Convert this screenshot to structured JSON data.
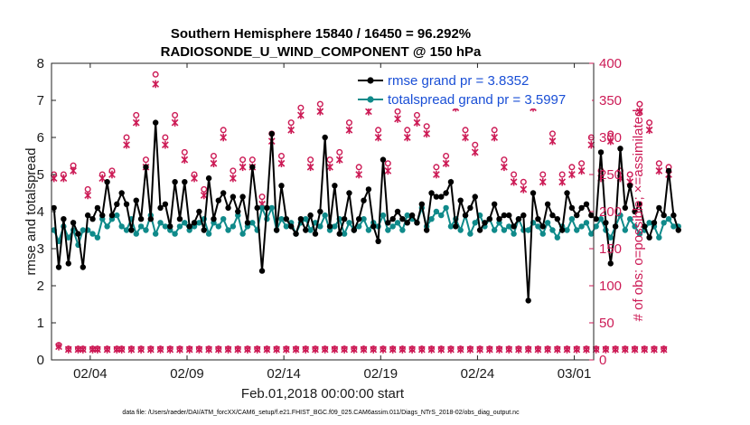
{
  "chart_data": {
    "type": "line",
    "title": "Southern Hemisphere 15840 / 16450 = 96.292%",
    "subtitle": "RADIOSONDE_U_WIND_COMPONENT @ 150 hPa",
    "xlabel": "Feb.01,2018 00:00:00 start",
    "ylabel": "rmse and totalspread",
    "ylabel_right": "# of obs: o=possible; ×=assimilated",
    "footnote": "data file: /Users/raeder/DAI/ATM_forcXX/CAM6_setup/f.e21.FHIST_BGC.f09_025.CAM6assim.011/Diags_NTrS_2018-02/obs_diag_output.nc",
    "xlim": [
      1,
      29
    ],
    "ylim": [
      0,
      8
    ],
    "ylim_right": [
      0,
      400
    ],
    "xticks": [
      3,
      8,
      13,
      18,
      23,
      28
    ],
    "xtick_labels": [
      "02/04",
      "02/09",
      "02/14",
      "02/19",
      "02/24",
      "03/01"
    ],
    "yticks": [
      0,
      1,
      2,
      3,
      4,
      5,
      6,
      7,
      8
    ],
    "yticks_right": [
      0,
      50,
      100,
      150,
      200,
      250,
      300,
      350,
      400
    ],
    "bin_width_days": 0.25,
    "legend_position": "top-right",
    "series": [
      {
        "name": "rmse grand pr = 3.8352",
        "color": "#000000",
        "axis": "left",
        "values": [
          4.1,
          2.5,
          3.8,
          2.6,
          3.7,
          3.4,
          2.5,
          3.9,
          3.8,
          4.1,
          3.9,
          4.8,
          3.9,
          4.2,
          4.5,
          4.2,
          3.5,
          4.3,
          3.8,
          5.2,
          3.8,
          6.4,
          4.1,
          4.2,
          3.6,
          4.8,
          3.8,
          4.8,
          3.6,
          3.7,
          4.0,
          3.5,
          4.9,
          3.8,
          4.3,
          4.5,
          4.1,
          4.4,
          4.0,
          4.4,
          3.7,
          5.2,
          4.1,
          2.4,
          4.1,
          6.1,
          3.5,
          4.7,
          3.8,
          3.6,
          3.4,
          3.8,
          3.5,
          3.9,
          3.4,
          4.0,
          6.0,
          3.6,
          4.7,
          3.4,
          3.8,
          4.5,
          3.5,
          3.8,
          4.3,
          4.6,
          3.6,
          3.2,
          5.4,
          3.7,
          3.8,
          4.0,
          3.8,
          3.7,
          3.9,
          3.7,
          4.2,
          3.5,
          4.5,
          4.4,
          4.4,
          4.5,
          4.8,
          3.6,
          4.3,
          3.9,
          4.1,
          4.4,
          3.5,
          3.7,
          3.8,
          4.2,
          3.8,
          3.9,
          3.9,
          3.6,
          3.8,
          3.9,
          1.6,
          4.5,
          3.8,
          3.6,
          4.2,
          3.9,
          3.8,
          3.5,
          4.5,
          4.1,
          3.9,
          4.1,
          4.2,
          3.9,
          3.8,
          5.6,
          3.7,
          2.6,
          3.6,
          5.7,
          4.1,
          4.7,
          4.0,
          4.2,
          3.6,
          3.3,
          3.7,
          4.1,
          3.9,
          5.1,
          3.9,
          3.5
        ]
      },
      {
        "name": "totalspread grand pr = 3.5997",
        "color": "#0f8a8a",
        "axis": "left",
        "values": [
          3.5,
          3.2,
          3.6,
          3.3,
          3.5,
          3.1,
          3.5,
          3.5,
          3.4,
          3.3,
          3.8,
          3.6,
          3.8,
          3.9,
          3.6,
          3.5,
          3.8,
          3.4,
          3.6,
          3.5,
          3.9,
          3.4,
          3.7,
          3.6,
          3.5,
          3.4,
          3.6,
          3.7,
          3.5,
          3.6,
          3.7,
          3.8,
          3.4,
          3.7,
          3.6,
          3.8,
          3.5,
          3.6,
          3.9,
          3.4,
          3.6,
          3.7,
          3.5,
          4.1,
          3.8,
          4.1,
          3.5,
          3.8,
          3.6,
          3.7,
          3.4,
          3.7,
          3.8,
          3.5,
          3.7,
          3.6,
          3.9,
          3.5,
          3.6,
          3.8,
          3.4,
          3.7,
          3.5,
          3.6,
          3.8,
          3.5,
          3.7,
          3.6,
          3.9,
          3.5,
          3.6,
          3.7,
          3.5,
          3.9,
          3.8,
          3.7,
          4.1,
          3.6,
          3.8,
          4.0,
          3.9,
          4.1,
          3.6,
          3.8,
          3.5,
          3.9,
          3.4,
          3.7,
          3.9,
          3.6,
          3.8,
          3.5,
          3.7,
          3.5,
          3.6,
          3.4,
          3.8,
          3.5,
          3.5,
          3.7,
          3.6,
          3.4,
          3.7,
          3.5,
          3.3,
          3.6,
          3.5,
          3.8,
          3.5,
          3.6,
          3.7,
          3.4,
          3.6,
          3.8,
          3.5,
          3.3,
          3.6,
          3.9,
          3.5,
          3.8,
          3.6,
          3.4,
          3.5,
          3.7,
          3.6,
          3.3,
          3.7,
          3.8,
          3.6,
          3.6
        ]
      },
      {
        "name": "# of obs possible",
        "color": "#cc1a55",
        "axis": "right",
        "marker": "o",
        "values": [
          250,
          20,
          250,
          15,
          262,
          15,
          15,
          230,
          15,
          15,
          250,
          15,
          255,
          15,
          15,
          300,
          15,
          330,
          15,
          270,
          15,
          385,
          15,
          300,
          15,
          330,
          15,
          280,
          15,
          250,
          15,
          230,
          15,
          275,
          15,
          310,
          15,
          255,
          15,
          270,
          15,
          270,
          15,
          220,
          15,
          305,
          15,
          275,
          15,
          320,
          15,
          340,
          15,
          270,
          15,
          345,
          15,
          270,
          15,
          280,
          15,
          320,
          15,
          260,
          15,
          345,
          15,
          310,
          15,
          265,
          15,
          335,
          15,
          310,
          15,
          330,
          15,
          315,
          15,
          260,
          15,
          275,
          15,
          350,
          15,
          310,
          15,
          290,
          15,
          365,
          15,
          310,
          15,
          270,
          15,
          250,
          15,
          240,
          15,
          350,
          15,
          250,
          15,
          305,
          15,
          250,
          15,
          260,
          15,
          265,
          15,
          300,
          15,
          255,
          15,
          305,
          15,
          255,
          15,
          250,
          15,
          345,
          15,
          320,
          15,
          265,
          15,
          260
        ]
      },
      {
        "name": "# of obs assimilated",
        "color": "#cc1a55",
        "axis": "right",
        "marker": "x",
        "values": [
          245,
          18,
          245,
          14,
          255,
          14,
          14,
          222,
          14,
          14,
          245,
          14,
          250,
          14,
          14,
          290,
          14,
          320,
          14,
          260,
          14,
          372,
          14,
          290,
          14,
          320,
          14,
          270,
          14,
          245,
          14,
          222,
          14,
          265,
          14,
          300,
          14,
          245,
          14,
          260,
          14,
          260,
          14,
          210,
          14,
          295,
          14,
          265,
          14,
          310,
          14,
          330,
          14,
          260,
          14,
          335,
          14,
          260,
          14,
          270,
          14,
          310,
          14,
          250,
          14,
          335,
          14,
          300,
          14,
          255,
          14,
          325,
          14,
          300,
          14,
          320,
          14,
          305,
          14,
          250,
          14,
          265,
          14,
          340,
          14,
          300,
          14,
          280,
          14,
          355,
          14,
          300,
          14,
          260,
          14,
          240,
          14,
          230,
          14,
          340,
          14,
          240,
          14,
          295,
          14,
          240,
          14,
          250,
          14,
          255,
          14,
          290,
          14,
          245,
          14,
          295,
          14,
          245,
          14,
          240,
          14,
          335,
          14,
          310,
          14,
          255,
          14,
          250
        ]
      }
    ]
  }
}
